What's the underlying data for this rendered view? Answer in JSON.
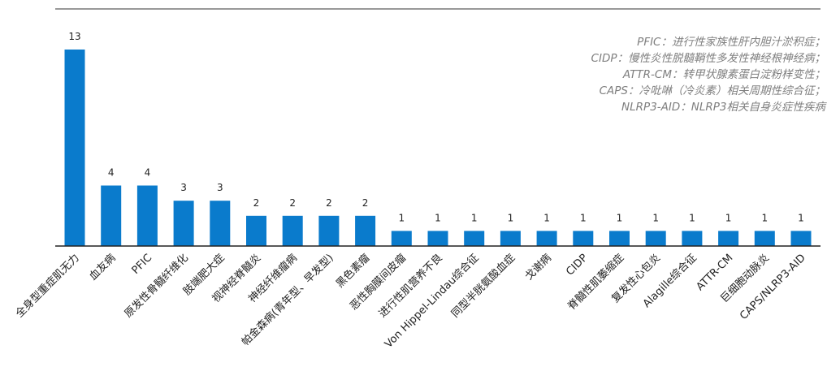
{
  "chart_data": {
    "type": "bar",
    "categories": [
      "全身型重症肌无力",
      "血友病",
      "PFIC",
      "原发性骨髓纤维化",
      "肢端肥大症",
      "视神经脊髓炎",
      "神经纤维瘤病",
      "帕金森病(青年型、早发型)",
      "黑色素瘤",
      "恶性胸膜间皮瘤",
      "进行性肌营养不良",
      "Von Hippel-Lindau综合征",
      "同型半胱氨酸血症",
      "戈谢病",
      "CIDP",
      "脊髓性肌萎缩症",
      "复发性心包炎",
      "Alagille综合征",
      "ATTR-CM",
      "巨细胞动脉炎",
      "CAPS/NLRP3-AID"
    ],
    "values": [
      13,
      4,
      4,
      3,
      3,
      2,
      2,
      2,
      2,
      1,
      1,
      1,
      1,
      1,
      1,
      1,
      1,
      1,
      1,
      1,
      1
    ],
    "ylim": [
      0,
      13
    ],
    "bar_color": "#0a7bcc",
    "grid": false,
    "data_labels": true
  },
  "notes": [
    "PFIC：进行性家族性肝内胆汁淤积症；",
    "CIDP：慢性炎性脱髓鞘性多发性神经根神经病；",
    "ATTR-CM：转甲状腺素蛋白淀粉样变性；",
    "CAPS：冷吡啉（冷炎素）相关周期性综合征；",
    "NLRP3-AID：NLRP3相关自身炎症性疾病"
  ]
}
